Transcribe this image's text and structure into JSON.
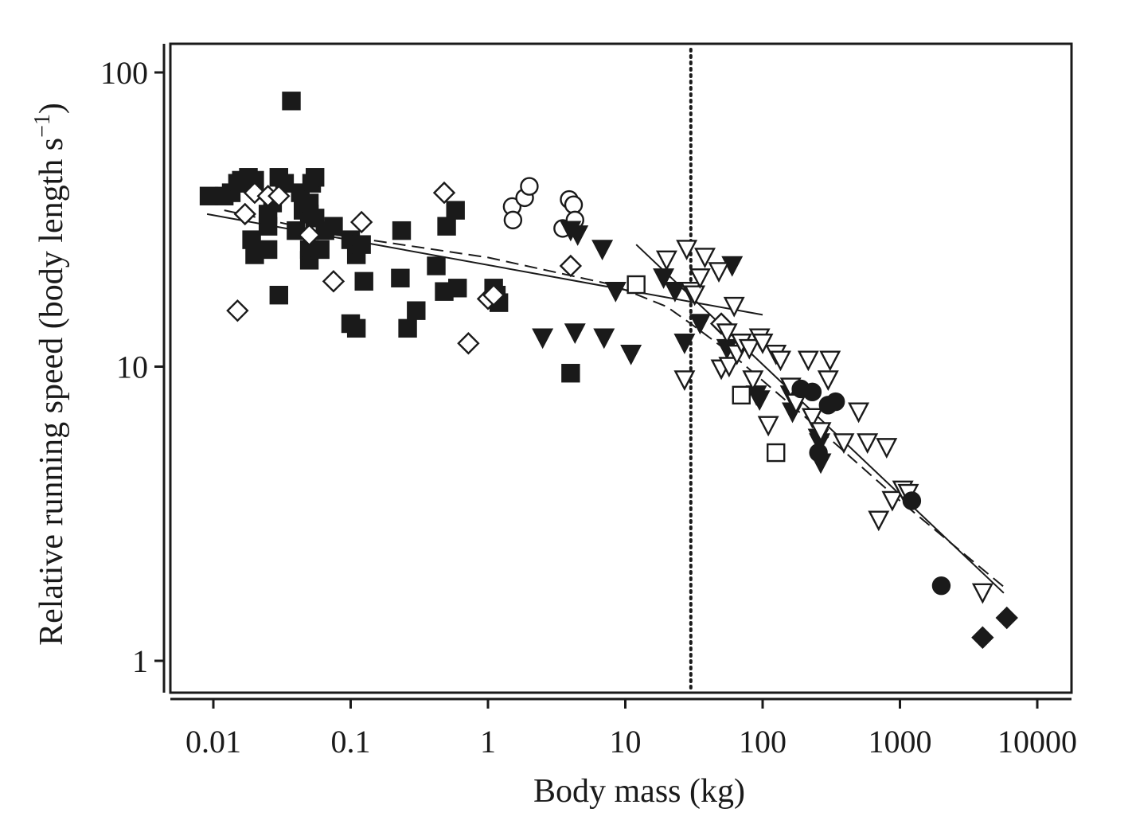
{
  "chart_data": {
    "type": "scatter",
    "title": "",
    "xlabel": "Body mass (kg)",
    "ylabel_main": "Relative running speed (body length s",
    "ylabel_sup": "−1",
    "ylabel_close": ")",
    "x_scale": "log",
    "y_scale": "log",
    "xlim": [
      0.008,
      20000
    ],
    "ylim": [
      0.8,
      130
    ],
    "grid": false,
    "legend": "none",
    "x_ticks": [
      {
        "value": 0.01,
        "label": "0.01"
      },
      {
        "value": 0.1,
        "label": "0.1"
      },
      {
        "value": 1,
        "label": "1"
      },
      {
        "value": 10,
        "label": "10"
      },
      {
        "value": 100,
        "label": "100"
      },
      {
        "value": 1000,
        "label": "1000"
      },
      {
        "value": 10000,
        "label": "10000"
      }
    ],
    "y_ticks": [
      {
        "value": 1,
        "label": "1"
      },
      {
        "value": 10,
        "label": "10"
      },
      {
        "value": 100,
        "label": "100"
      }
    ],
    "reference_line_x": 30,
    "series": [
      {
        "marker": "square",
        "filled": true,
        "points": [
          [
            0.0093,
            38
          ],
          [
            0.012,
            38
          ],
          [
            0.0135,
            39
          ],
          [
            0.015,
            42
          ],
          [
            0.016,
            43
          ],
          [
            0.018,
            44
          ],
          [
            0.02,
            43
          ],
          [
            0.019,
            27
          ],
          [
            0.02,
            24
          ],
          [
            0.025,
            25
          ],
          [
            0.025,
            30
          ],
          [
            0.025,
            33
          ],
          [
            0.027,
            36
          ],
          [
            0.03,
            44
          ],
          [
            0.03,
            17.5
          ],
          [
            0.033,
            42
          ],
          [
            0.037,
            80
          ],
          [
            0.04,
            29
          ],
          [
            0.043,
            39
          ],
          [
            0.045,
            34
          ],
          [
            0.05,
            23
          ],
          [
            0.05,
            25
          ],
          [
            0.05,
            33
          ],
          [
            0.05,
            36
          ],
          [
            0.052,
            42
          ],
          [
            0.055,
            44
          ],
          [
            0.055,
            32
          ],
          [
            0.06,
            25
          ],
          [
            0.065,
            29
          ],
          [
            0.075,
            30
          ],
          [
            0.1,
            27
          ],
          [
            0.1,
            14
          ],
          [
            0.11,
            13.5
          ],
          [
            0.11,
            24
          ],
          [
            0.12,
            26
          ],
          [
            0.125,
            19.5
          ],
          [
            0.23,
            20
          ],
          [
            0.235,
            29
          ],
          [
            0.26,
            13.5
          ],
          [
            0.3,
            15.5
          ],
          [
            0.42,
            22
          ],
          [
            0.48,
            18
          ],
          [
            0.5,
            30
          ],
          [
            0.58,
            34
          ],
          [
            0.6,
            18.5
          ],
          [
            1.1,
            18.5
          ],
          [
            1.2,
            16.5
          ],
          [
            4,
            9.5
          ],
          [
            1.15,
            17.5
          ]
        ]
      },
      {
        "marker": "diamond",
        "filled": false,
        "points": [
          [
            0.015,
            15.5
          ],
          [
            0.017,
            33
          ],
          [
            0.02,
            39
          ],
          [
            0.025,
            38
          ],
          [
            0.03,
            38
          ],
          [
            0.05,
            28
          ],
          [
            0.075,
            19.5
          ],
          [
            0.12,
            31
          ],
          [
            0.48,
            39
          ],
          [
            0.72,
            12
          ],
          [
            1,
            17
          ],
          [
            1.1,
            17.5
          ],
          [
            4,
            22
          ],
          [
            50,
            14
          ]
        ]
      },
      {
        "marker": "circle",
        "filled": false,
        "points": [
          [
            1.5,
            35
          ],
          [
            1.52,
            31.5
          ],
          [
            1.85,
            37.5
          ],
          [
            2,
            41
          ],
          [
            3.5,
            29.5
          ],
          [
            3.9,
            37
          ],
          [
            4.2,
            35.5
          ],
          [
            4.3,
            31.5
          ]
        ]
      },
      {
        "marker": "triangle-down",
        "filled": true,
        "points": [
          [
            2.5,
            12.5
          ],
          [
            4,
            29
          ],
          [
            4.3,
            13
          ],
          [
            4.5,
            28
          ],
          [
            6.8,
            25
          ],
          [
            7,
            12.5
          ],
          [
            8.5,
            18
          ],
          [
            11,
            11
          ],
          [
            19,
            20
          ],
          [
            23,
            18
          ],
          [
            27,
            12
          ],
          [
            35,
            14
          ],
          [
            60,
            22
          ],
          [
            55,
            11.5
          ],
          [
            90,
            8
          ],
          [
            95,
            7.7
          ],
          [
            160,
            8
          ],
          [
            165,
            7
          ],
          [
            260,
            5.5
          ],
          [
            265,
            4.7
          ],
          [
            255,
            5.7
          ]
        ]
      },
      {
        "marker": "square",
        "filled": false,
        "points": [
          [
            12,
            19
          ],
          [
            70,
            8
          ],
          [
            125,
            5.1
          ]
        ]
      },
      {
        "marker": "triangle-down",
        "filled": false,
        "points": [
          [
            20,
            23
          ],
          [
            27,
            9
          ],
          [
            28,
            25
          ],
          [
            30,
            18
          ],
          [
            32,
            17.5
          ],
          [
            35,
            20
          ],
          [
            38,
            23.5
          ],
          [
            48,
            21
          ],
          [
            50,
            9.8
          ],
          [
            55,
            13
          ],
          [
            57,
            10
          ],
          [
            62,
            16
          ],
          [
            65,
            11
          ],
          [
            70,
            12
          ],
          [
            80,
            11.5
          ],
          [
            85,
            9
          ],
          [
            95,
            12.5
          ],
          [
            100,
            12
          ],
          [
            110,
            6.3
          ],
          [
            125,
            11
          ],
          [
            135,
            10.5
          ],
          [
            160,
            8.5
          ],
          [
            175,
            7.5
          ],
          [
            215,
            10.5
          ],
          [
            230,
            6.7
          ],
          [
            265,
            6
          ],
          [
            300,
            9
          ],
          [
            310,
            10.5
          ],
          [
            390,
            5.5
          ],
          [
            500,
            7
          ],
          [
            580,
            5.5
          ],
          [
            700,
            3
          ],
          [
            800,
            5.3
          ],
          [
            880,
            3.5
          ],
          [
            1050,
            3.8
          ],
          [
            1150,
            3.7
          ],
          [
            4000,
            1.7
          ]
        ]
      },
      {
        "marker": "circle",
        "filled": true,
        "points": [
          [
            190,
            8.4
          ],
          [
            230,
            8.2
          ],
          [
            255,
            5.1
          ],
          [
            300,
            7.4
          ],
          [
            340,
            7.6
          ],
          [
            1220,
            3.5
          ],
          [
            2000,
            1.8
          ]
        ]
      },
      {
        "marker": "diamond",
        "filled": true,
        "points": [
          [
            4000,
            1.2
          ],
          [
            6000,
            1.4
          ]
        ]
      }
    ],
    "fit_lines": [
      {
        "style": "solid",
        "points": [
          [
            0.009,
            33
          ],
          [
            100,
            15
          ]
        ]
      },
      {
        "style": "solid",
        "points": [
          [
            12,
            26
          ],
          [
            5700,
            1.7
          ]
        ]
      },
      {
        "style": "dashed",
        "points": [
          [
            0.012,
            34
          ],
          [
            0.08,
            28
          ],
          [
            1,
            23.5
          ],
          [
            8,
            19
          ],
          [
            20,
            16
          ],
          [
            30,
            14
          ],
          [
            60,
            11
          ],
          [
            200,
            6.8
          ],
          [
            1000,
            3.5
          ],
          [
            6000,
            1.75
          ]
        ]
      }
    ]
  }
}
